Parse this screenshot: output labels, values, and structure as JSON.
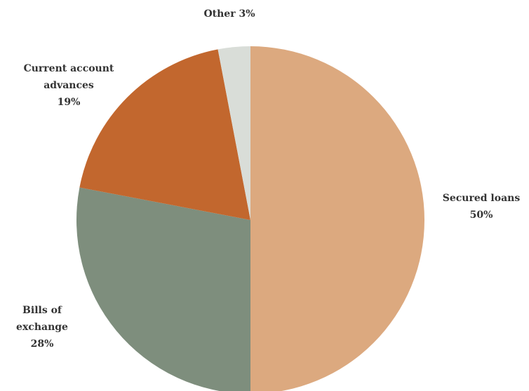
{
  "chart_data": {
    "type": "pie",
    "title": "",
    "start_angle_deg": 0,
    "direction": "clockwise",
    "slices": [
      {
        "name": "Secured loans",
        "label_lines": [
          "Secured loans",
          "50%"
        ],
        "value": 50,
        "color": "#DCA97F"
      },
      {
        "name": "Bills of exchange",
        "label_lines": [
          "Bills of",
          "exchange",
          "28%"
        ],
        "value": 28,
        "color": "#7E8E7D"
      },
      {
        "name": "Current account advances",
        "label_lines": [
          "Current account",
          "advances",
          "19%"
        ],
        "value": 19,
        "color": "#C2672E"
      },
      {
        "name": "Other",
        "label_lines": [
          "Other 3%"
        ],
        "value": 3,
        "color": "#D9DDD8"
      }
    ]
  }
}
